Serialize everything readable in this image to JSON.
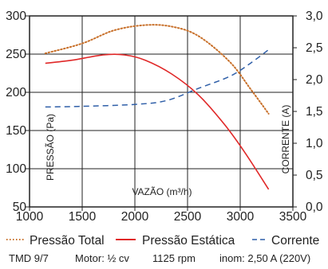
{
  "chart_data": {
    "type": "line",
    "xlabel": "VAZÃO (m³/h)",
    "ylabel_left": "PRESSÃO (Pa)",
    "ylabel_right": "CORRENTE (A)",
    "xlim": [
      1000,
      3500
    ],
    "ylim_left": [
      50,
      300
    ],
    "ylim_right": [
      0.0,
      3.0
    ],
    "x_ticks": [
      1000,
      1500,
      2000,
      2500,
      3000,
      3500
    ],
    "y_left_ticks": [
      50,
      100,
      150,
      200,
      250,
      300
    ],
    "y_right_ticks": [
      "0,0",
      "0,5",
      "1,0",
      "1,5",
      "2,0",
      "2,5",
      "3,0"
    ],
    "grid": true,
    "series": [
      {
        "name": "Pressão Total",
        "axis": "left",
        "color": "#c8702a",
        "style": "dotted",
        "x": [
          1150,
          1500,
          1800,
          2100,
          2350,
          2600,
          2900,
          3100,
          3270
        ],
        "y": [
          251,
          264,
          281,
          288,
          286,
          274,
          240,
          204,
          172
        ]
      },
      {
        "name": "Pressão Estática",
        "axis": "left",
        "color": "#e02828",
        "style": "solid",
        "x": [
          1150,
          1400,
          1700,
          1900,
          2100,
          2350,
          2600,
          2850,
          3050,
          3270
        ],
        "y": [
          238,
          242,
          249,
          249,
          242,
          224,
          197,
          158,
          120,
          73
        ]
      },
      {
        "name": "Corrente",
        "axis": "right",
        "color": "#2f5fa8",
        "style": "dashed",
        "x": [
          1150,
          1500,
          2000,
          2300,
          2600,
          2900,
          3100,
          3270
        ],
        "y": [
          1.57,
          1.58,
          1.61,
          1.67,
          1.86,
          2.05,
          2.26,
          2.47
        ]
      }
    ]
  },
  "specs": {
    "model": "TMD 9/7",
    "motor": "Motor: ½ cv",
    "rpm": "1125 rpm",
    "current": "inom: 2,50 A (220V)"
  }
}
